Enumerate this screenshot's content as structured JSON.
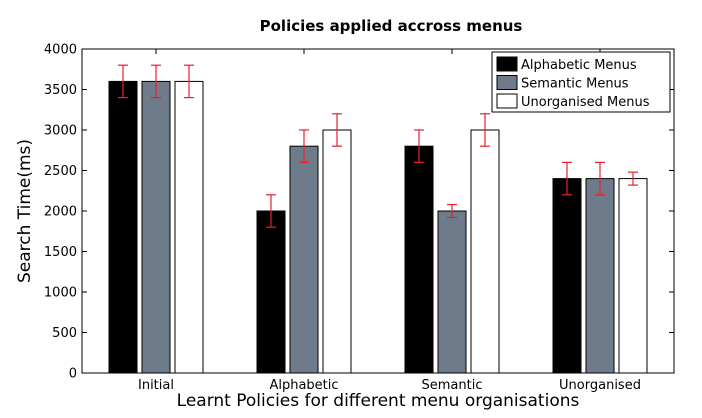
{
  "chart_data": {
    "type": "bar",
    "title": "Policies applied accross menus",
    "xlabel": "Learnt Policies for different menu organisations",
    "ylabel": "Search Time(ms)",
    "categories": [
      "Initial",
      "Alphabetic",
      "Semantic",
      "Unorganised"
    ],
    "ylim": [
      0,
      4000
    ],
    "yticks": [
      0,
      500,
      1000,
      1500,
      2000,
      2500,
      3000,
      3500,
      4000
    ],
    "grid": false,
    "legend_position": "top-right",
    "series": [
      {
        "name": "Alphabetic Menus",
        "color": "#000000",
        "values": [
          3600,
          2000,
          2800,
          2400
        ],
        "errors": [
          200,
          200,
          200,
          200
        ]
      },
      {
        "name": "Semantic Menus",
        "color": "#6e7b8b",
        "values": [
          3600,
          2800,
          2000,
          2400
        ],
        "errors": [
          200,
          200,
          80,
          200
        ]
      },
      {
        "name": "Unorganised Menus",
        "color": "#ffffff",
        "values": [
          3600,
          3000,
          3000,
          2400
        ],
        "errors": [
          200,
          200,
          200,
          80
        ]
      }
    ],
    "error_bar_color": "#e8202a"
  }
}
